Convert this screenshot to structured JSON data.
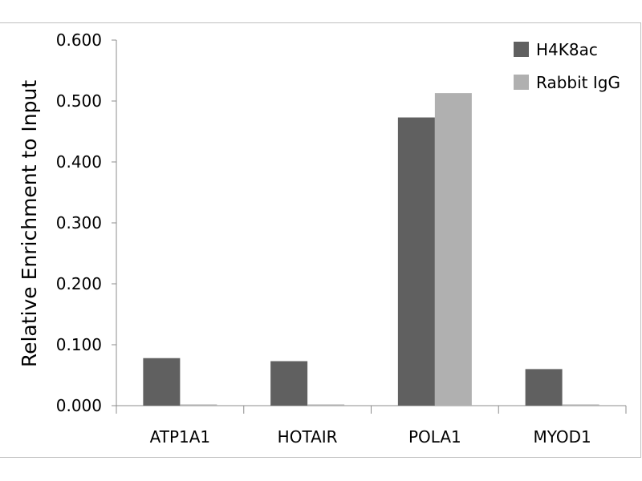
{
  "chart_data": {
    "type": "bar",
    "title": "",
    "xlabel": "",
    "ylabel": "Relative Enrichment to Input",
    "categories": [
      "ATP1A1",
      "HOTAIR",
      "POLA1",
      "MYOD1"
    ],
    "series": [
      {
        "name": "H4K8ac",
        "color": "#606060",
        "values": [
          0.078,
          0.073,
          0.473,
          0.06
        ]
      },
      {
        "name": "Rabbit IgG",
        "color": "#b0b0b0",
        "values": [
          0.002,
          0.002,
          0.513,
          0.002
        ]
      }
    ],
    "ylim": [
      0,
      0.6
    ],
    "yticks": [
      "0.000",
      "0.100",
      "0.200",
      "0.300",
      "0.400",
      "0.500",
      "0.600"
    ],
    "grid": false,
    "legend_position": "top-right"
  }
}
